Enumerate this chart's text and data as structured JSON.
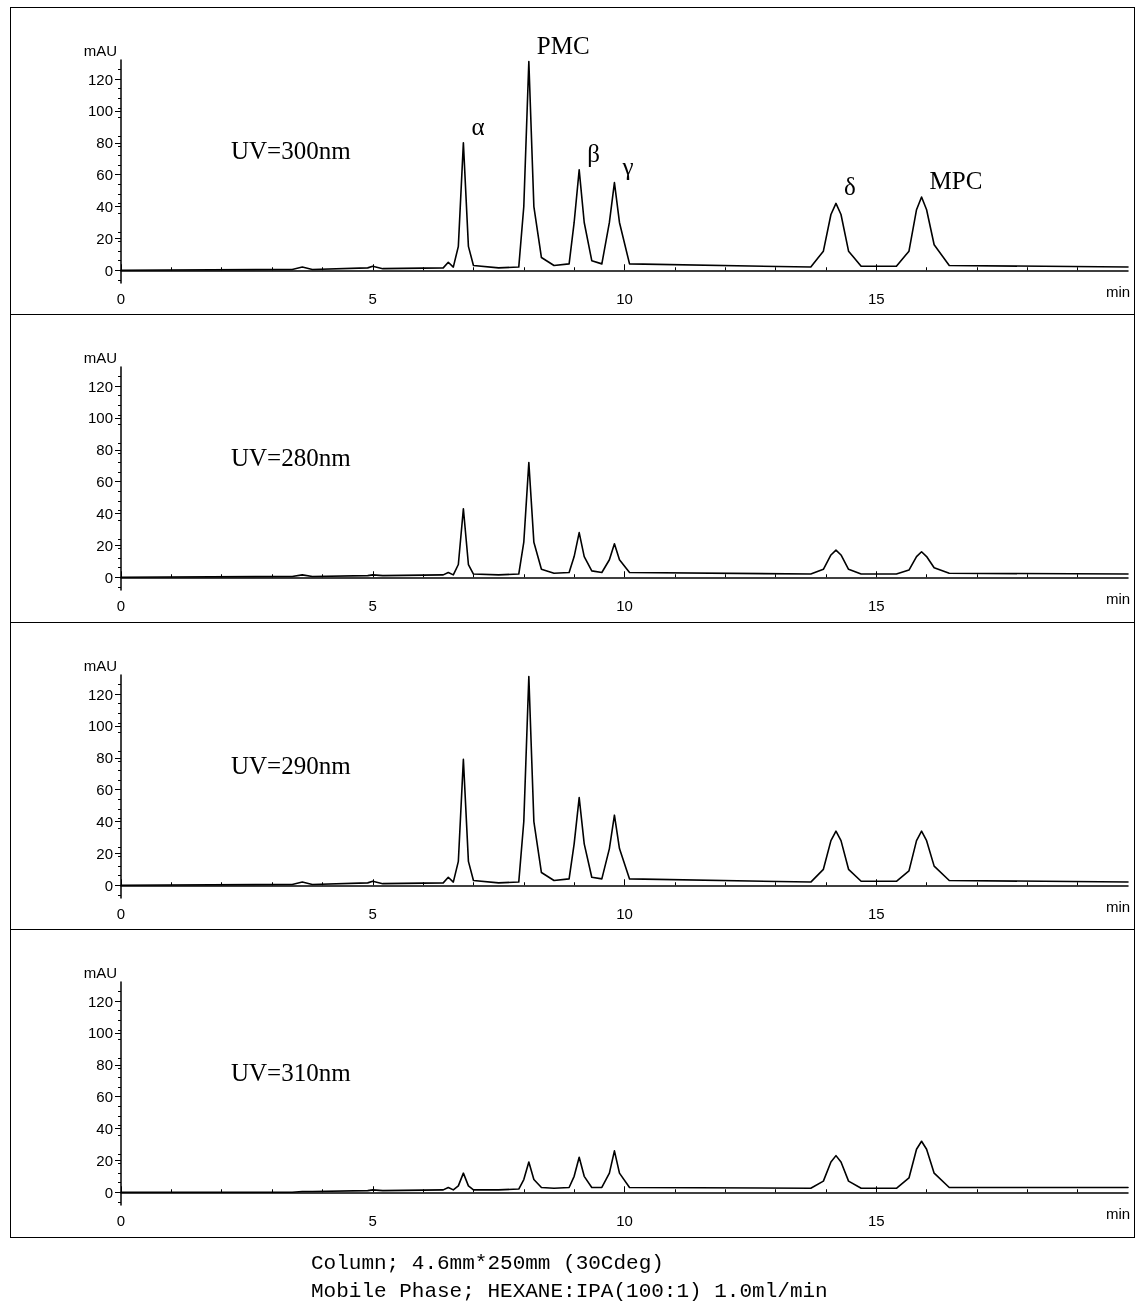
{
  "chart_data": [
    {
      "type": "line",
      "xlabel": "min",
      "ylabel": "mAU",
      "xlim": [
        0,
        20
      ],
      "xticks": [
        0,
        5,
        10,
        15
      ],
      "ylim": [
        -8,
        132
      ],
      "yticks": [
        0,
        20,
        40,
        60,
        80,
        100,
        120
      ],
      "grid": false,
      "marker": "none",
      "line_style": "solid",
      "annotations": [
        "UV=300nm",
        {
          "text": "α",
          "x": 6.8,
          "y": 80
        },
        {
          "text": "PMC",
          "x": 8.1,
          "y": 131
        },
        {
          "text": "β",
          "x": 9.1,
          "y": 63
        },
        {
          "text": "γ",
          "x": 9.8,
          "y": 55
        },
        {
          "text": "δ",
          "x": 14.2,
          "y": 42
        },
        {
          "text": "MPC",
          "x": 15.9,
          "y": 46
        }
      ],
      "x": [
        0,
        3.4,
        3.6,
        3.8,
        4.9,
        5.0,
        5.2,
        6.4,
        6.5,
        6.6,
        6.7,
        6.8,
        6.9,
        7.0,
        7.5,
        7.9,
        8.0,
        8.1,
        8.2,
        8.35,
        8.6,
        8.9,
        9.0,
        9.1,
        9.2,
        9.35,
        9.55,
        9.7,
        9.8,
        9.9,
        10.1,
        13.7,
        13.95,
        14.1,
        14.2,
        14.3,
        14.45,
        14.7,
        15.4,
        15.65,
        15.8,
        15.9,
        16.0,
        16.15,
        16.45,
        20
      ],
      "series": [
        {
          "color": "#000000",
          "values": [
            0,
            0.5,
            2,
            0.5,
            1.5,
            2.5,
            1,
            1.5,
            5,
            2,
            15,
            80,
            15,
            3,
            1.5,
            2,
            40,
            131,
            40,
            8,
            3,
            4,
            30,
            63,
            30,
            6,
            4,
            30,
            55,
            30,
            4,
            2,
            12,
            35,
            42,
            35,
            12,
            2.5,
            2.5,
            12,
            38,
            46,
            38,
            16,
            3,
            2
          ]
        }
      ]
    },
    {
      "type": "line",
      "xlabel": "min",
      "ylabel": "mAU",
      "xlim": [
        0,
        20
      ],
      "xticks": [
        0,
        5,
        10,
        15
      ],
      "ylim": [
        -8,
        132
      ],
      "yticks": [
        0,
        20,
        40,
        60,
        80,
        100,
        120
      ],
      "grid": false,
      "marker": "none",
      "line_style": "solid",
      "annotations": [
        "UV=280nm"
      ],
      "x": [
        0,
        3.4,
        3.6,
        3.8,
        4.9,
        5.0,
        5.2,
        6.4,
        6.5,
        6.6,
        6.7,
        6.8,
        6.9,
        7.0,
        7.5,
        7.9,
        8.0,
        8.1,
        8.2,
        8.35,
        8.6,
        8.9,
        9.0,
        9.1,
        9.2,
        9.35,
        9.55,
        9.7,
        9.8,
        9.9,
        10.1,
        13.7,
        13.95,
        14.1,
        14.2,
        14.3,
        14.45,
        14.7,
        15.4,
        15.65,
        15.8,
        15.9,
        16.0,
        16.15,
        16.45,
        20
      ],
      "series": [
        {
          "color": "#000000",
          "values": [
            0,
            0.5,
            1.5,
            0.5,
            1,
            1.5,
            1,
            1.5,
            3,
            1.5,
            8,
            43,
            8,
            2,
            1.5,
            2,
            22,
            72,
            22,
            5,
            2.5,
            3,
            13,
            28,
            13,
            4,
            3,
            11,
            21,
            11,
            3,
            2,
            5,
            14,
            17,
            14,
            5,
            2,
            2,
            4.5,
            13,
            16,
            13,
            6,
            2.5,
            2
          ]
        }
      ]
    },
    {
      "type": "line",
      "xlabel": "min",
      "ylabel": "mAU",
      "xlim": [
        0,
        20
      ],
      "xticks": [
        0,
        5,
        10,
        15
      ],
      "ylim": [
        -8,
        132
      ],
      "yticks": [
        0,
        20,
        40,
        60,
        80,
        100,
        120
      ],
      "grid": false,
      "marker": "none",
      "line_style": "solid",
      "annotations": [
        "UV=290nm"
      ],
      "x": [
        0,
        3.4,
        3.6,
        3.8,
        4.9,
        5.0,
        5.2,
        6.4,
        6.5,
        6.6,
        6.7,
        6.8,
        6.9,
        7.0,
        7.5,
        7.9,
        8.0,
        8.1,
        8.2,
        8.35,
        8.6,
        8.9,
        9.0,
        9.1,
        9.2,
        9.35,
        9.55,
        9.7,
        9.8,
        9.9,
        10.1,
        13.7,
        13.95,
        14.1,
        14.2,
        14.3,
        14.45,
        14.7,
        15.4,
        15.65,
        15.8,
        15.9,
        16.0,
        16.15,
        16.45,
        20
      ],
      "series": [
        {
          "color": "#000000",
          "values": [
            0,
            0.5,
            2,
            0.5,
            1.5,
            2.5,
            1,
            1.5,
            5,
            2,
            15,
            79,
            15,
            3,
            1.5,
            2,
            40,
            131,
            40,
            8,
            3,
            4,
            26,
            55,
            26,
            5,
            4,
            23,
            44,
            23,
            4,
            2,
            10,
            28,
            34,
            28,
            10,
            2.5,
            2.5,
            9,
            28,
            34,
            28,
            12,
            3,
            2
          ]
        }
      ]
    },
    {
      "type": "line",
      "xlabel": "min",
      "ylabel": "mAU",
      "xlim": [
        0,
        20
      ],
      "xticks": [
        0,
        5,
        10,
        15
      ],
      "ylim": [
        -8,
        132
      ],
      "yticks": [
        0,
        20,
        40,
        60,
        80,
        100,
        120
      ],
      "grid": false,
      "marker": "none",
      "line_style": "solid",
      "annotations": [
        "UV=310nm",
        "Column; 4.6mm*250mm (30Cdeg)",
        "Mobile Phase; HEXANE:IPA(100:1) 1.0ml/min"
      ],
      "x": [
        0,
        3.4,
        3.6,
        3.8,
        4.9,
        5.0,
        5.2,
        6.4,
        6.5,
        6.6,
        6.7,
        6.8,
        6.9,
        7.0,
        7.5,
        7.9,
        8.0,
        8.1,
        8.2,
        8.35,
        8.6,
        8.9,
        9.0,
        9.1,
        9.2,
        9.35,
        9.55,
        9.7,
        9.8,
        9.9,
        10.1,
        13.7,
        13.95,
        14.1,
        14.2,
        14.3,
        14.45,
        14.7,
        15.4,
        15.65,
        15.8,
        15.9,
        16.0,
        16.15,
        16.45,
        20
      ],
      "series": [
        {
          "color": "#000000",
          "values": [
            0,
            0,
            0.5,
            0.5,
            1,
            1.5,
            1,
            1.5,
            3,
            1.5,
            4,
            12,
            4,
            1.5,
            1.5,
            2,
            8,
            19,
            8,
            3,
            2.5,
            3,
            10,
            22,
            10,
            3,
            3,
            12,
            26,
            12,
            3,
            2.5,
            7,
            19,
            23,
            19,
            7,
            2.5,
            2.5,
            9,
            27,
            32,
            27,
            12,
            3,
            3
          ]
        }
      ]
    }
  ]
}
